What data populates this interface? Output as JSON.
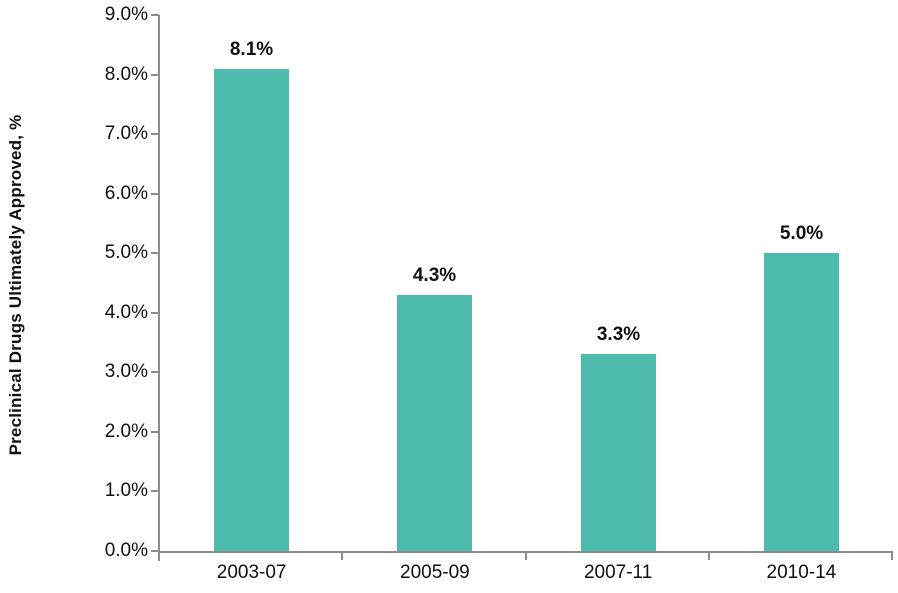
{
  "chart_data": {
    "type": "bar",
    "title": "",
    "categories": [
      "2003-07",
      "2005-09",
      "2007-11",
      "2010-14"
    ],
    "values": [
      8.1,
      4.3,
      3.3,
      5.0
    ],
    "value_labels": [
      "8.1%",
      "4.3%",
      "3.3%",
      "5.0%"
    ],
    "xlabel": "",
    "ylabel": "Preclinical Drugs Ultimately Approved, %",
    "ylim": [
      0,
      9
    ],
    "ytick_step": 1,
    "ytick_labels": [
      "0.0%",
      "1.0%",
      "2.0%",
      "3.0%",
      "4.0%",
      "5.0%",
      "6.0%",
      "7.0%",
      "8.0%",
      "9.0%"
    ],
    "grid": false,
    "legend_position": "none",
    "bar_color": "#4EBCAC",
    "axis_color": "#8C8C8C",
    "label_color": "#111111",
    "background": "#FFFFFF"
  }
}
